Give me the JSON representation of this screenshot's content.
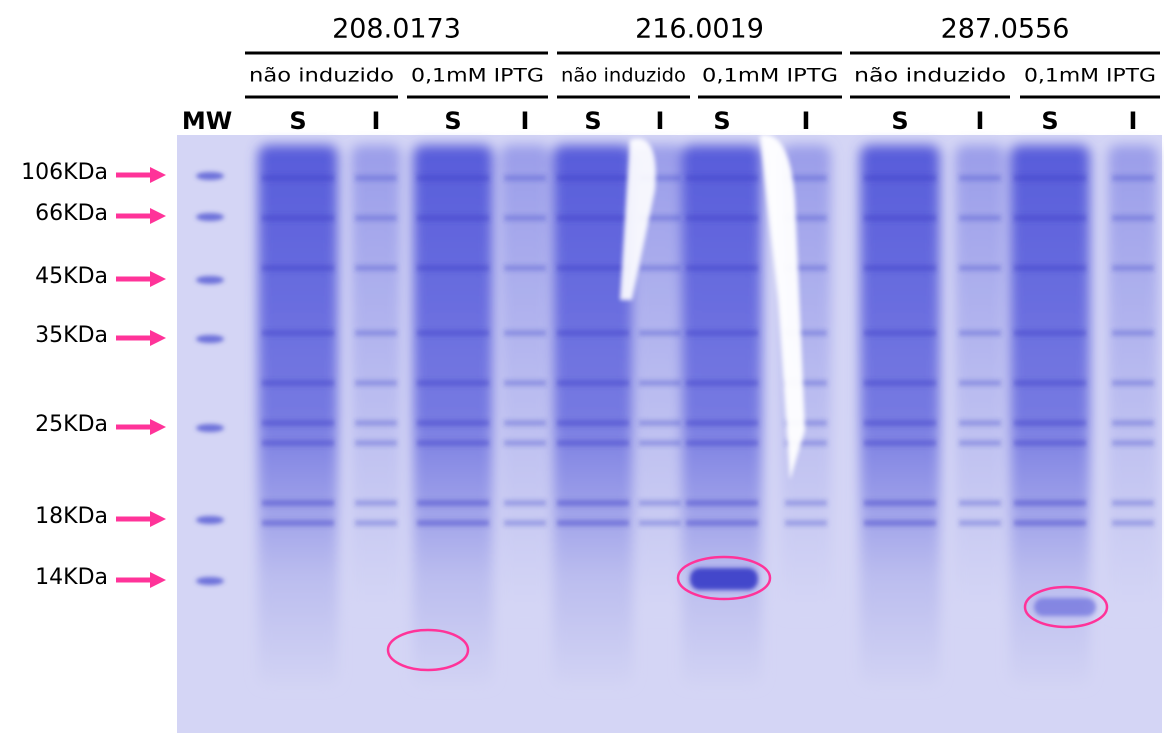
{
  "mw_label": "MW",
  "samples": [
    {
      "name": "208.0173",
      "conditions": [
        {
          "label": "não induzido",
          "lanes": [
            "S",
            "I"
          ]
        },
        {
          "label": "0,1mM IPTG",
          "lanes": [
            "S",
            "I"
          ]
        }
      ]
    },
    {
      "name": "216.0019",
      "conditions": [
        {
          "label": "não induzido",
          "lanes": [
            "S",
            "I"
          ]
        },
        {
          "label": "0,1mM IPTG",
          "lanes": [
            "S",
            "I"
          ]
        }
      ]
    },
    {
      "name": "287.0556",
      "conditions": [
        {
          "label": "não induzido",
          "lanes": [
            "S",
            "I"
          ]
        },
        {
          "label": "0,1mM IPTG",
          "lanes": [
            "S",
            "I"
          ]
        }
      ]
    }
  ],
  "markers": [
    "106KDa",
    "66KDa",
    "45KDa",
    "35KDa",
    "25KDa",
    "18KDa",
    "14KDa"
  ]
}
